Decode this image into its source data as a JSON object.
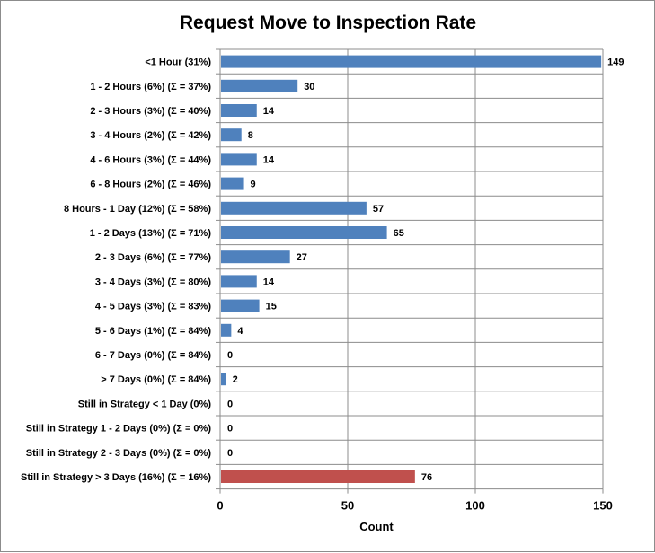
{
  "chart_data": {
    "type": "bar",
    "orientation": "horizontal",
    "title": "Request Move to Inspection Rate",
    "xlabel": "Count",
    "ylabel": "",
    "xlim": [
      0,
      150
    ],
    "xticks": [
      0,
      50,
      100,
      150
    ],
    "grid": true,
    "legend": "none",
    "categories": [
      "<1 Hour (31%)",
      "1 - 2 Hours (6%) (Σ = 37%)",
      "2 - 3 Hours (3%) (Σ = 40%)",
      "3 - 4 Hours (2%) (Σ = 42%)",
      "4 - 6 Hours (3%) (Σ = 44%)",
      "6 - 8 Hours (2%) (Σ = 46%)",
      "8 Hours - 1 Day (12%) (Σ = 58%)",
      "1 - 2 Days (13%) (Σ = 71%)",
      "2 - 3 Days (6%) (Σ = 77%)",
      "3 - 4 Days (3%) (Σ = 80%)",
      "4 - 5 Days (3%) (Σ = 83%)",
      "5 - 6 Days (1%) (Σ = 84%)",
      "6 - 7 Days (0%) (Σ = 84%)",
      "> 7 Days (0%) (Σ = 84%)",
      "Still in Strategy  < 1 Day (0%)",
      "Still in Strategy  1 - 2 Days (0%) (Σ = 0%)",
      "Still in Strategy  2 - 3 Days (0%) (Σ = 0%)",
      "Still in Strategy > 3 Days (16%) (Σ = 16%)"
    ],
    "values": [
      149,
      30,
      14,
      8,
      14,
      9,
      57,
      65,
      27,
      14,
      15,
      4,
      0,
      2,
      0,
      0,
      0,
      76
    ],
    "bar_colors": [
      "#4f81bd",
      "#4f81bd",
      "#4f81bd",
      "#4f81bd",
      "#4f81bd",
      "#4f81bd",
      "#4f81bd",
      "#4f81bd",
      "#4f81bd",
      "#4f81bd",
      "#4f81bd",
      "#4f81bd",
      "#4f81bd",
      "#4f81bd",
      "#4f81bd",
      "#4f81bd",
      "#4f81bd",
      "#c0504d"
    ],
    "colors": {
      "primary": "#4f81bd",
      "highlight": "#c0504d",
      "grid": "#8c8c8c"
    }
  }
}
